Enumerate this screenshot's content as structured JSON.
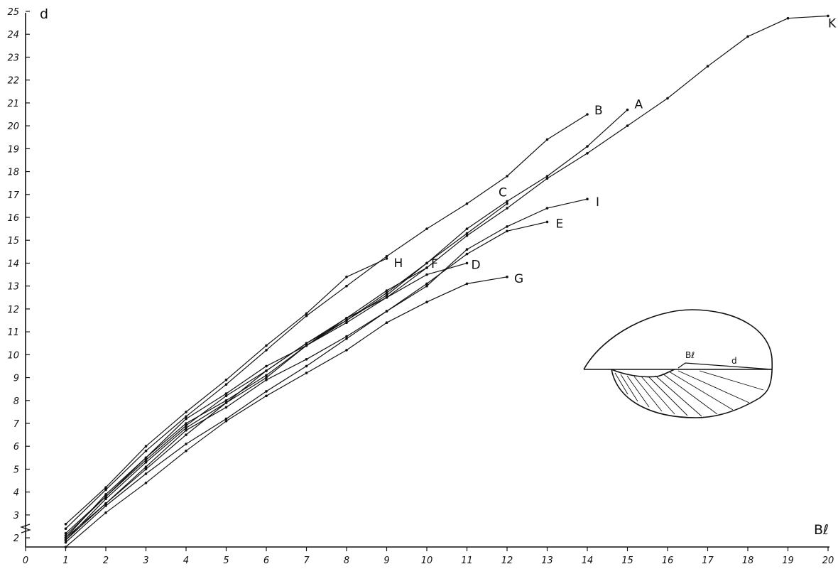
{
  "chart_data": {
    "type": "line",
    "xlabel": "Bℓ",
    "ylabel": "d",
    "xlim": [
      0,
      20
    ],
    "ylim": [
      1.6,
      25
    ],
    "x_ticks": [
      "0",
      "1",
      "2",
      "3",
      "4",
      "5",
      "6",
      "7",
      "8",
      "9",
      "10",
      "11",
      "12",
      "13",
      "14",
      "15",
      "16",
      "17",
      "18",
      "19",
      "20"
    ],
    "y_ticks": [
      "2",
      "3",
      "4",
      "5",
      "6",
      "7",
      "8",
      "9",
      "10",
      "11",
      "12",
      "13",
      "14",
      "15",
      "16",
      "17",
      "18",
      "19",
      "20",
      "21",
      "22",
      "23",
      "24",
      "25"
    ],
    "grid": false,
    "legend": "labels at line ends",
    "series": [
      {
        "name": "A",
        "x": [
          1,
          2,
          3,
          4,
          5,
          6,
          7,
          8,
          9,
          10,
          11,
          12,
          13,
          14,
          15
        ],
        "y": [
          2.0,
          3.5,
          5.0,
          6.5,
          7.9,
          9.3,
          10.5,
          11.5,
          12.6,
          14.0,
          15.5,
          16.7,
          17.8,
          19.1,
          20.7
        ]
      },
      {
        "name": "B",
        "x": [
          1,
          2,
          3,
          4,
          5,
          6,
          7,
          8,
          9,
          10,
          11,
          12,
          13,
          14
        ],
        "y": [
          2.4,
          4.1,
          5.8,
          7.3,
          8.7,
          10.2,
          11.7,
          13.0,
          14.3,
          15.5,
          16.6,
          17.8,
          19.4,
          20.5
        ]
      },
      {
        "name": "C",
        "x": [
          1,
          2,
          3,
          4,
          5,
          6,
          7,
          8,
          9,
          10,
          11,
          12
        ],
        "y": [
          2.0,
          3.9,
          5.5,
          7.0,
          8.0,
          9.1,
          10.4,
          11.5,
          12.7,
          14.0,
          15.3,
          16.6
        ]
      },
      {
        "name": "D",
        "x": [
          1,
          2,
          3,
          4,
          5,
          6,
          7,
          8,
          9,
          10,
          11
        ],
        "y": [
          1.9,
          3.7,
          5.3,
          6.8,
          7.9,
          9.0,
          10.4,
          11.4,
          12.5,
          13.5,
          14.0
        ]
      },
      {
        "name": "E",
        "x": [
          1,
          2,
          3,
          4,
          5,
          6,
          7,
          8,
          9,
          10,
          11,
          12,
          13
        ],
        "y": [
          1.8,
          3.4,
          4.8,
          6.1,
          7.2,
          8.4,
          9.5,
          10.7,
          11.9,
          13.1,
          14.4,
          15.4,
          15.8
        ]
      },
      {
        "name": "F",
        "x": [
          1,
          2,
          3,
          4,
          5,
          6,
          7,
          8,
          9,
          10
        ],
        "y": [
          2.1,
          3.8,
          5.4,
          6.9,
          8.2,
          9.3,
          10.5,
          11.6,
          12.8,
          13.8
        ]
      },
      {
        "name": "G",
        "x": [
          1,
          2,
          3,
          4,
          5,
          6,
          7,
          8,
          9,
          10,
          11,
          12
        ],
        "y": [
          1.6,
          3.1,
          4.4,
          5.8,
          7.1,
          8.2,
          9.2,
          10.2,
          11.4,
          12.3,
          13.1,
          13.4
        ]
      },
      {
        "name": "H",
        "x": [
          1,
          2,
          3,
          4,
          5,
          6,
          7,
          8,
          9
        ],
        "y": [
          2.6,
          4.2,
          6.0,
          7.5,
          8.9,
          10.4,
          11.8,
          13.4,
          14.2
        ]
      },
      {
        "name": "I",
        "x": [
          1,
          2,
          3,
          4,
          5,
          6,
          7,
          8,
          9,
          10,
          11,
          12,
          13,
          14
        ],
        "y": [
          1.9,
          3.5,
          5.1,
          6.7,
          7.7,
          8.9,
          9.8,
          10.8,
          11.9,
          13.0,
          14.6,
          15.6,
          16.4,
          16.8
        ]
      },
      {
        "name": "K",
        "x": [
          1,
          2,
          3,
          4,
          5,
          6,
          7,
          8,
          9,
          10,
          11,
          12,
          13,
          14,
          15,
          16,
          17,
          18,
          19,
          20
        ],
        "y": [
          2.2,
          3.8,
          5.5,
          7.2,
          8.3,
          9.5,
          10.4,
          11.6,
          12.5,
          13.8,
          15.2,
          16.4,
          17.7,
          18.8,
          20.0,
          21.2,
          22.6,
          23.9,
          24.7,
          24.8
        ]
      }
    ],
    "inset": {
      "labels": [
        "Bℓ",
        "d"
      ]
    }
  }
}
